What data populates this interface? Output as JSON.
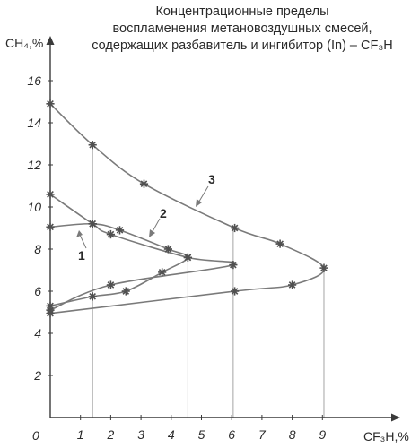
{
  "chart_data": {
    "type": "line",
    "title_lines": [
      "Концентрационные пределы",
      "воспламенения метановоздушных смесей,",
      "содержащих разбавитель и ингибитор (In) – CF₃H"
    ],
    "xlabel": "CF₃H,%",
    "ylabel": "CH₄,%",
    "origin_label": "0",
    "xlim": [
      0,
      10
    ],
    "ylim": [
      0,
      16
    ],
    "x_ticks": [
      "1",
      "2",
      "3",
      "4",
      "5",
      "6",
      "7",
      "8",
      "9"
    ],
    "y_ticks": [
      "2",
      "4",
      "6",
      "8",
      "10",
      "12",
      "14",
      "16"
    ],
    "series": [
      {
        "name": "1",
        "points": [
          [
            0,
            9.05
          ],
          [
            1.4,
            9.2
          ],
          [
            2.3,
            8.9
          ],
          [
            3.9,
            8.0
          ],
          [
            4.55,
            7.6
          ],
          [
            3.7,
            6.9
          ],
          [
            2.5,
            6.0
          ],
          [
            1.4,
            5.75
          ],
          [
            0,
            5.3
          ]
        ]
      },
      {
        "name": "2",
        "points": [
          [
            0,
            10.6
          ],
          [
            1.4,
            9.2
          ],
          [
            2.0,
            8.7
          ],
          [
            4.55,
            7.6
          ],
          [
            6.05,
            7.25
          ],
          [
            2.0,
            6.3
          ],
          [
            0,
            5.1
          ]
        ]
      },
      {
        "name": "3",
        "points": [
          [
            0,
            14.9
          ],
          [
            1.4,
            12.95
          ],
          [
            3.1,
            11.1
          ],
          [
            6.1,
            9.0
          ],
          [
            7.6,
            8.25
          ],
          [
            9.05,
            7.1
          ],
          [
            8.0,
            6.3
          ],
          [
            6.1,
            6.0
          ],
          [
            0,
            4.95
          ]
        ]
      }
    ],
    "vertical_guides": [
      1.4,
      3.1,
      4.55,
      6.05,
      9.05
    ],
    "line_color": "#7a7a7a",
    "axis_color": "#3a3a3a"
  }
}
